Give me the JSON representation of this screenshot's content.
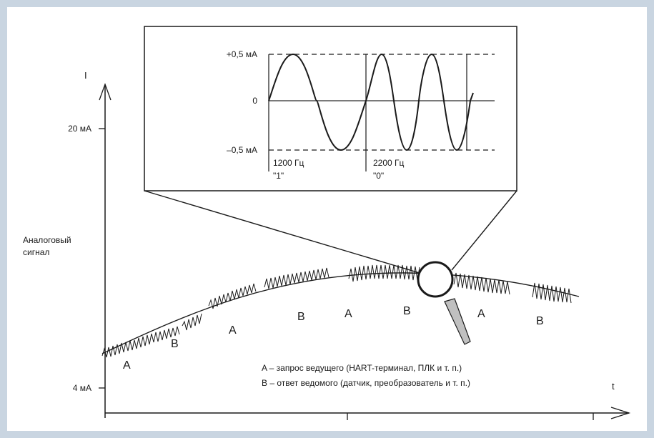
{
  "axes": {
    "y_label": "I",
    "x_label": "t",
    "y_tick_high": "20 мА",
    "y_tick_low": "4 мА",
    "analog_label_line1": "Аналоговый",
    "analog_label_line2": "сигнал"
  },
  "inset": {
    "plus_label": "+0,5 мА",
    "zero_label": "0",
    "minus_label": "–0,5 мА",
    "freq1_label": "1200 Гц",
    "freq1_bit": "\"1\"",
    "freq2_label": "2200 Гц",
    "freq2_bit": "\"0\""
  },
  "segments": [
    "A",
    "B",
    "A",
    "B",
    "A",
    "B",
    "A",
    "B"
  ],
  "legend": {
    "line_a": "A – запрос ведущего (HART-терминал, ПЛК и т. п.)",
    "line_b": "B – ответ ведомого (датчик, преобразователь и т. п.)"
  },
  "colors": {
    "frame": "#c9d5e1",
    "ink": "#1a1a1a"
  }
}
